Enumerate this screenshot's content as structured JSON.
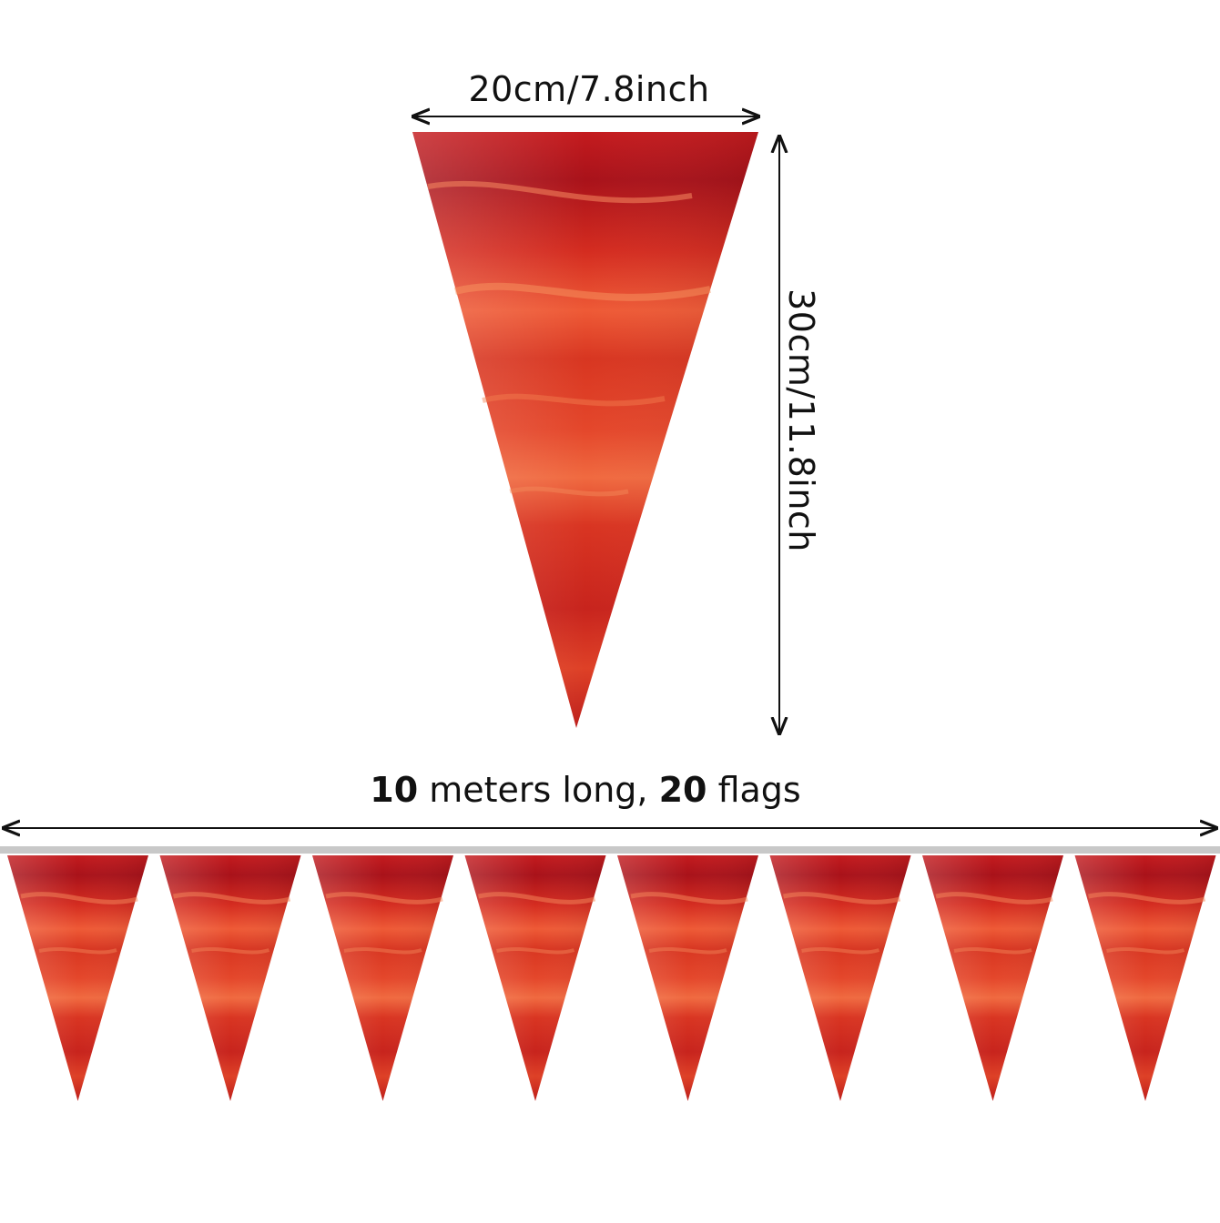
{
  "flag_dimensions": {
    "width_label": "20cm/7.8inch",
    "height_label": "30cm/11.8inch"
  },
  "banner": {
    "length_value": "10",
    "length_text": " meters long, ",
    "flags_value": "20",
    "flags_text": " flags",
    "visible_flag_count": 8
  },
  "colors": {
    "flag_dark": "#b3131b",
    "flag_mid": "#d8331f",
    "flag_light": "#f2683e",
    "string": "#c8c8c8",
    "arrow": "#111111"
  }
}
